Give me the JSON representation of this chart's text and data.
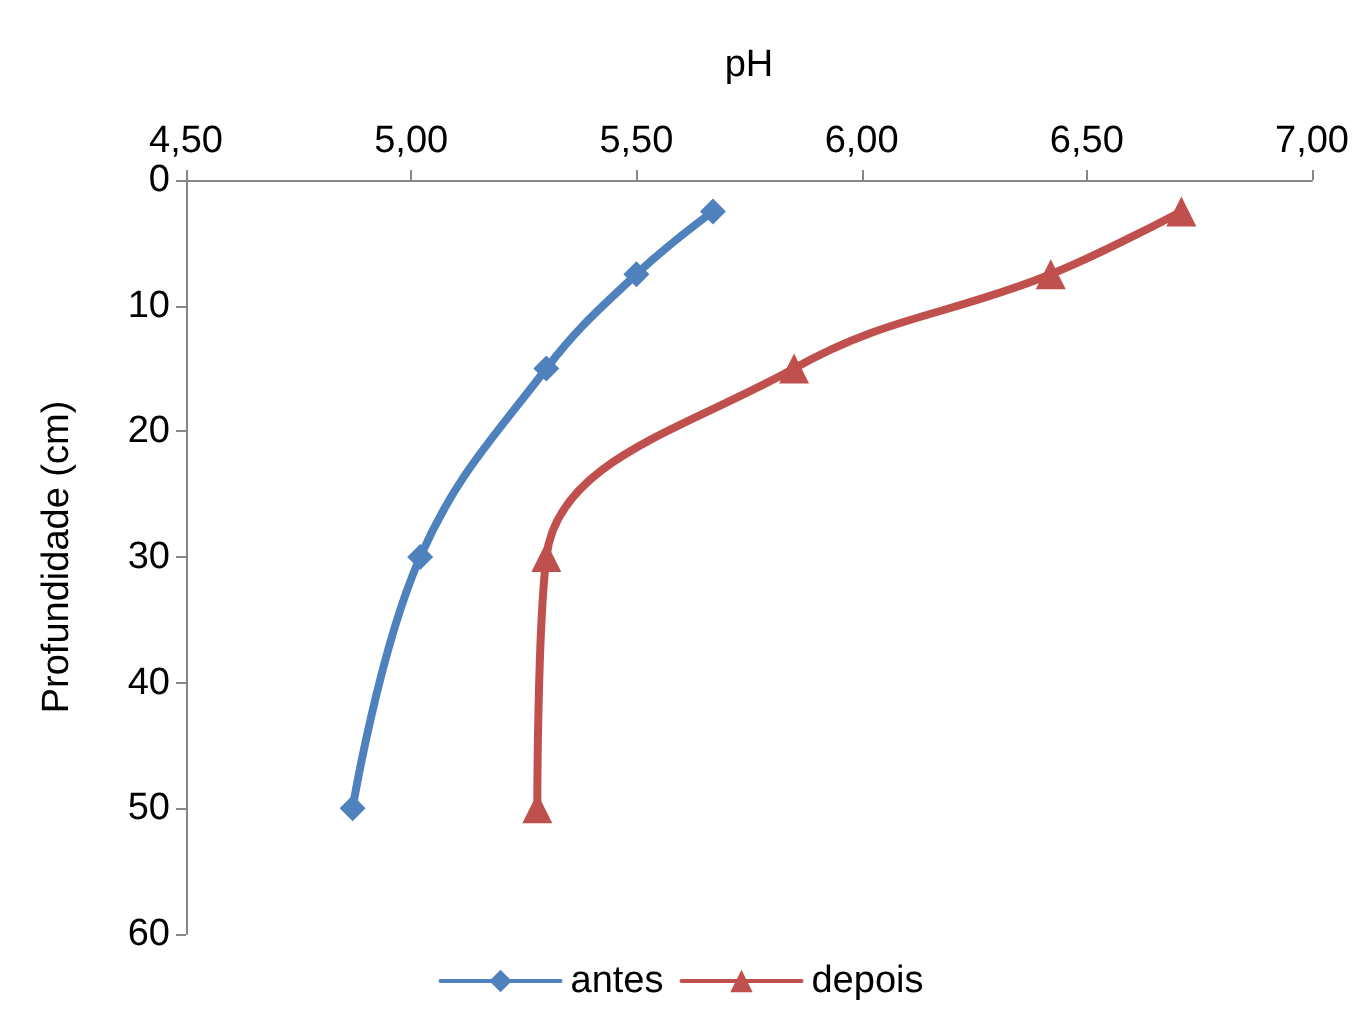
{
  "chart_data": {
    "type": "line",
    "xlabel": "pH",
    "ylabel": "Profundidade (cm)",
    "xlim": [
      4.5,
      7.0
    ],
    "xticks": [
      {
        "value": 4.5,
        "label": "4,50"
      },
      {
        "value": 5.0,
        "label": "5,00"
      },
      {
        "value": 5.5,
        "label": "5,50"
      },
      {
        "value": 6.0,
        "label": "6,00"
      },
      {
        "value": 6.5,
        "label": "6,50"
      },
      {
        "value": 7.0,
        "label": "7,00"
      }
    ],
    "ylim": [
      60,
      0
    ],
    "yticks": [
      0,
      10,
      20,
      30,
      40,
      50,
      60
    ],
    "grid": false,
    "legend": "bottom",
    "line_style": "solid",
    "series": [
      {
        "name": "antes",
        "color": "#4f81bd",
        "marker": "diamond",
        "x": [
          5.67,
          5.5,
          5.3,
          5.02,
          4.87
        ],
        "values": [
          2.5,
          7.5,
          15,
          30,
          50
        ]
      },
      {
        "name": "depois",
        "color": "#c0504d",
        "marker": "triangle",
        "x": [
          6.71,
          6.42,
          5.85,
          5.3,
          5.28
        ],
        "values": [
          2.5,
          7.5,
          15,
          30,
          50
        ]
      }
    ]
  }
}
